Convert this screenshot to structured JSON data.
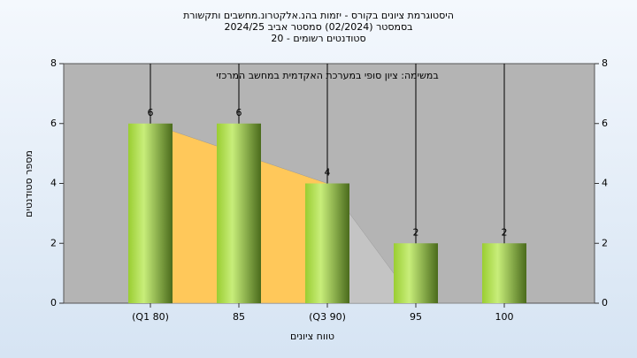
{
  "chart_data": {
    "type": "bar",
    "title_lines": [
      "היסטוגרמת ציונים בקורס - יזמות בהנ.אלקטרונ.מחשבים ותקשורת",
      "בסמסטר  (02/2024)  סמסטר אביב 2024/25",
      "סטודנטים רשומים - 20"
    ],
    "annotation": "במשימה: ציון סופי במערכת האקדמית במחשב המרכזי",
    "x_label": "טווח ציונים",
    "y_label": "מספר סטודנטים",
    "categories": [
      "(Q1 80)",
      "85",
      "(Q3 90)",
      "95",
      "100"
    ],
    "values": [
      6,
      6,
      4,
      2,
      2
    ],
    "areas": [
      {
        "color": "#ffc85a",
        "values": [
          6,
          5,
          4,
          null,
          null
        ]
      },
      {
        "color": "#c4c4c4",
        "values": [
          null,
          null,
          4,
          0,
          0
        ]
      }
    ],
    "ylim": [
      0,
      8
    ],
    "yticks": [
      0,
      2,
      4,
      6,
      8
    ],
    "y2lim": [
      0,
      8
    ],
    "y2ticks": [
      0,
      2,
      4,
      6,
      8
    ],
    "grid": true
  }
}
